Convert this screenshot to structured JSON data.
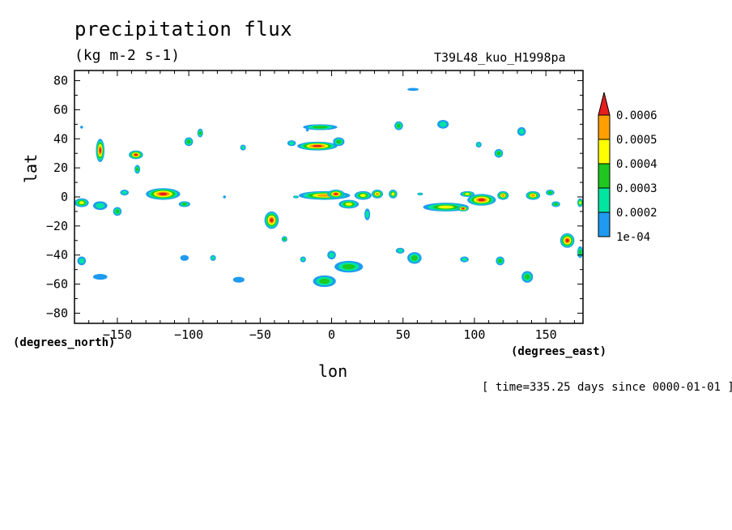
{
  "chart_data": {
    "type": "contour-map",
    "title": "precipitation flux",
    "units": "(kg m-2 s-1)",
    "experiment": "T39L48_kuo_H1998pa",
    "xlabel": "lon",
    "ylabel": "lat",
    "x_units": "(degrees_east)",
    "y_units": "(degrees_north)",
    "xlim": [
      -180,
      176
    ],
    "ylim": [
      -87,
      87
    ],
    "x_ticks": [
      -150,
      -100,
      -50,
      0,
      50,
      100,
      150
    ],
    "y_ticks": [
      80,
      60,
      40,
      20,
      0,
      -20,
      -40,
      -60,
      -80
    ],
    "colorbar": {
      "levels": [
        "1e-04",
        "0.0002",
        "0.0003",
        "0.0004",
        "0.0005",
        "0.0006"
      ],
      "colors": [
        "#1e9bf0",
        "#00e6a0",
        "#1ec81e",
        "#ffff00",
        "#ffa000",
        "#e61e1e"
      ]
    },
    "timestamp": "[ time=335.25 days since 0000-01-01 ]",
    "blobs": [
      {
        "lon": -175,
        "lat": -4,
        "rx": 5,
        "ry": 3,
        "level": 4
      },
      {
        "lon": -162,
        "lat": 32,
        "rx": 3,
        "ry": 8,
        "level": 6
      },
      {
        "lon": -162,
        "lat": -6,
        "rx": 5,
        "ry": 3,
        "level": 2
      },
      {
        "lon": -150,
        "lat": -10,
        "rx": 3,
        "ry": 3,
        "level": 3
      },
      {
        "lon": -145,
        "lat": 3,
        "rx": 3,
        "ry": 2,
        "level": 2
      },
      {
        "lon": -137,
        "lat": 29,
        "rx": 5,
        "ry": 3,
        "level": 6
      },
      {
        "lon": -136,
        "lat": 19,
        "rx": 2,
        "ry": 3,
        "level": 3
      },
      {
        "lon": -118,
        "lat": 2,
        "rx": 12,
        "ry": 4,
        "level": 6
      },
      {
        "lon": -103,
        "lat": -5,
        "rx": 4,
        "ry": 2,
        "level": 3
      },
      {
        "lon": -100,
        "lat": 38,
        "rx": 3,
        "ry": 3,
        "level": 3
      },
      {
        "lon": -92,
        "lat": 44,
        "rx": 2,
        "ry": 3,
        "level": 3
      },
      {
        "lon": -62,
        "lat": 34,
        "rx": 2,
        "ry": 2,
        "level": 2
      },
      {
        "lon": -42,
        "lat": -16,
        "rx": 5,
        "ry": 6,
        "level": 6
      },
      {
        "lon": -28,
        "lat": 37,
        "rx": 3,
        "ry": 2,
        "level": 2
      },
      {
        "lon": -10,
        "lat": 35,
        "rx": 14,
        "ry": 3,
        "level": 6
      },
      {
        "lon": -8,
        "lat": 48,
        "rx": 12,
        "ry": 2,
        "level": 3
      },
      {
        "lon": 5,
        "lat": 38,
        "rx": 4,
        "ry": 3,
        "level": 3
      },
      {
        "lon": -5,
        "lat": 1,
        "rx": 18,
        "ry": 3,
        "level": 5
      },
      {
        "lon": 3,
        "lat": 2,
        "rx": 6,
        "ry": 3,
        "level": 6
      },
      {
        "lon": 12,
        "lat": -5,
        "rx": 7,
        "ry": 3,
        "level": 4
      },
      {
        "lon": 22,
        "lat": 1,
        "rx": 6,
        "ry": 3,
        "level": 4
      },
      {
        "lon": 32,
        "lat": 2,
        "rx": 4,
        "ry": 3,
        "level": 5
      },
      {
        "lon": 43,
        "lat": 2,
        "rx": 3,
        "ry": 3,
        "level": 4
      },
      {
        "lon": 25,
        "lat": -12,
        "rx": 2,
        "ry": 4,
        "level": 2
      },
      {
        "lon": 47,
        "lat": 49,
        "rx": 3,
        "ry": 3,
        "level": 3
      },
      {
        "lon": 57,
        "lat": 74,
        "rx": 4,
        "ry": 1,
        "level": 1
      },
      {
        "lon": 78,
        "lat": 50,
        "rx": 4,
        "ry": 3,
        "level": 2
      },
      {
        "lon": 80,
        "lat": -7,
        "rx": 16,
        "ry": 3,
        "level": 4
      },
      {
        "lon": 92,
        "lat": -8,
        "rx": 4,
        "ry": 2,
        "level": 6
      },
      {
        "lon": 105,
        "lat": -2,
        "rx": 10,
        "ry": 4,
        "level": 6
      },
      {
        "lon": 95,
        "lat": 2,
        "rx": 5,
        "ry": 2,
        "level": 4
      },
      {
        "lon": 120,
        "lat": 1,
        "rx": 4,
        "ry": 3,
        "level": 5
      },
      {
        "lon": 117,
        "lat": 30,
        "rx": 3,
        "ry": 3,
        "level": 3
      },
      {
        "lon": 133,
        "lat": 45,
        "rx": 3,
        "ry": 3,
        "level": 2
      },
      {
        "lon": 141,
        "lat": 1,
        "rx": 5,
        "ry": 3,
        "level": 5
      },
      {
        "lon": 153,
        "lat": 3,
        "rx": 3,
        "ry": 2,
        "level": 3
      },
      {
        "lon": 157,
        "lat": -5,
        "rx": 3,
        "ry": 2,
        "level": 3
      },
      {
        "lon": 165,
        "lat": -30,
        "rx": 5,
        "ry": 5,
        "level": 6
      },
      {
        "lon": 174,
        "lat": -4,
        "rx": 2,
        "ry": 3,
        "level": 4
      },
      {
        "lon": 174,
        "lat": -38,
        "rx": 2,
        "ry": 4,
        "level": 3
      },
      {
        "lon": 12,
        "lat": -48,
        "rx": 10,
        "ry": 4,
        "level": 3
      },
      {
        "lon": -5,
        "lat": -58,
        "rx": 8,
        "ry": 4,
        "level": 3
      },
      {
        "lon": 0,
        "lat": -40,
        "rx": 3,
        "ry": 3,
        "level": 2
      },
      {
        "lon": 58,
        "lat": -42,
        "rx": 5,
        "ry": 4,
        "level": 3
      },
      {
        "lon": 48,
        "lat": -37,
        "rx": 3,
        "ry": 2,
        "level": 2
      },
      {
        "lon": 137,
        "lat": -55,
        "rx": 4,
        "ry": 4,
        "level": 3
      },
      {
        "lon": 118,
        "lat": -44,
        "rx": 3,
        "ry": 3,
        "level": 3
      },
      {
        "lon": 93,
        "lat": -43,
        "rx": 3,
        "ry": 2,
        "level": 2
      },
      {
        "lon": -175,
        "lat": -44,
        "rx": 3,
        "ry": 3,
        "level": 2
      },
      {
        "lon": -162,
        "lat": -55,
        "rx": 5,
        "ry": 2,
        "level": 1
      },
      {
        "lon": -65,
        "lat": -57,
        "rx": 4,
        "ry": 2,
        "level": 1
      },
      {
        "lon": -83,
        "lat": -42,
        "rx": 2,
        "ry": 2,
        "level": 2
      },
      {
        "lon": -103,
        "lat": -42,
        "rx": 3,
        "ry": 2,
        "level": 1
      },
      {
        "lon": -33,
        "lat": -29,
        "rx": 2,
        "ry": 2,
        "level": 3
      },
      {
        "lon": -20,
        "lat": -43,
        "rx": 2,
        "ry": 2,
        "level": 2
      },
      {
        "lon": -25,
        "lat": 0,
        "rx": 2,
        "ry": 1,
        "level": 2
      },
      {
        "lon": -75,
        "lat": 0,
        "rx": 1,
        "ry": 1,
        "level": 1
      },
      {
        "lon": 62,
        "lat": 2,
        "rx": 2,
        "ry": 1,
        "level": 2
      },
      {
        "lon": 103,
        "lat": 36,
        "rx": 2,
        "ry": 2,
        "level": 2
      },
      {
        "lon": -17,
        "lat": 46,
        "rx": 1,
        "ry": 1,
        "level": 1
      },
      {
        "lon": -175,
        "lat": 48,
        "rx": 1,
        "ry": 1,
        "level": 1
      }
    ]
  }
}
